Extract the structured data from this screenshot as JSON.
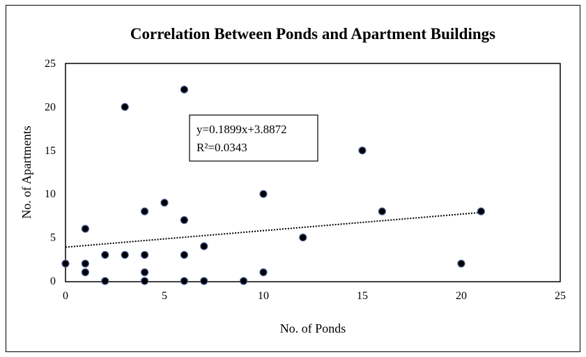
{
  "chart_data": {
    "type": "scatter",
    "title": "Correlation Between Ponds and Apartment Buildings",
    "xlabel": "No. of Ponds",
    "ylabel": "No. of Apartments",
    "xlim": [
      0,
      25
    ],
    "ylim": [
      0,
      25
    ],
    "x_ticks": [
      "0",
      "5",
      "10",
      "15",
      "20",
      "25"
    ],
    "y_ticks": [
      "0",
      "5",
      "10",
      "15",
      "20",
      "25"
    ],
    "grid": false,
    "legend": "none",
    "marker_color": "#000000",
    "points": [
      {
        "x": 0,
        "y": 2
      },
      {
        "x": 1,
        "y": 6
      },
      {
        "x": 1,
        "y": 2
      },
      {
        "x": 1,
        "y": 1
      },
      {
        "x": 2,
        "y": 3
      },
      {
        "x": 2,
        "y": 0
      },
      {
        "x": 3,
        "y": 20
      },
      {
        "x": 3,
        "y": 3
      },
      {
        "x": 4,
        "y": 8
      },
      {
        "x": 4,
        "y": 3
      },
      {
        "x": 4,
        "y": 1
      },
      {
        "x": 4,
        "y": 0
      },
      {
        "x": 5,
        "y": 9
      },
      {
        "x": 6,
        "y": 22
      },
      {
        "x": 6,
        "y": 7
      },
      {
        "x": 6,
        "y": 3
      },
      {
        "x": 6,
        "y": 0
      },
      {
        "x": 7,
        "y": 4
      },
      {
        "x": 7,
        "y": 0
      },
      {
        "x": 9,
        "y": 0
      },
      {
        "x": 10,
        "y": 10
      },
      {
        "x": 10,
        "y": 1
      },
      {
        "x": 12,
        "y": 5
      },
      {
        "x": 15,
        "y": 15
      },
      {
        "x": 16,
        "y": 8
      },
      {
        "x": 20,
        "y": 2
      },
      {
        "x": 21,
        "y": 8
      }
    ],
    "trendline": {
      "style": "dotted",
      "slope": 0.1899,
      "intercept": 3.8872,
      "equation": "y=0.1899x+3.8872",
      "r_squared_label": "R²=0.0343"
    }
  }
}
